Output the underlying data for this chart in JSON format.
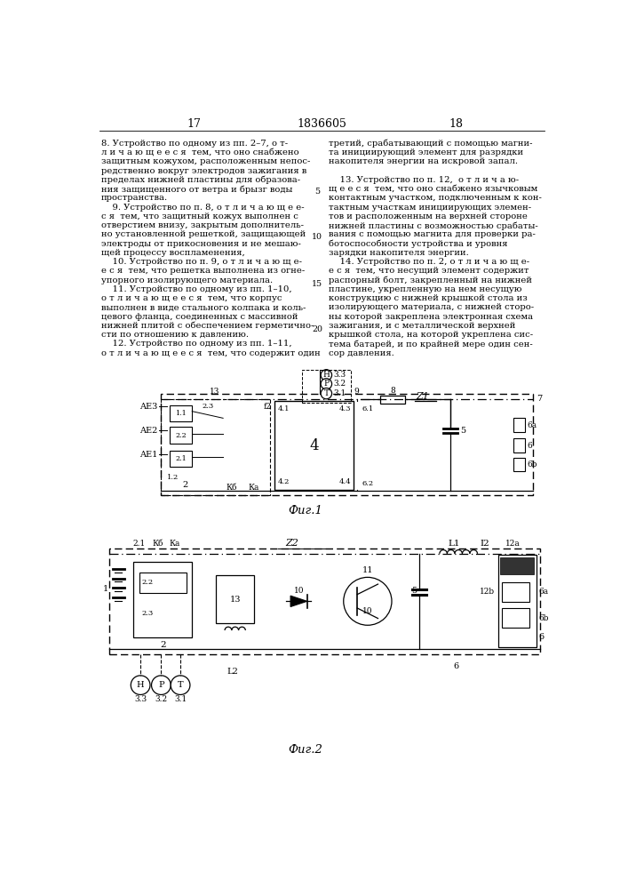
{
  "background_color": "#ffffff",
  "text_color": "#000000",
  "page_num_left": "17",
  "page_num_center": "1836605",
  "page_num_right": "18",
  "fig1_caption": "Фиг.1",
  "fig2_caption": "Фиг.2",
  "left_col_lines": [
    "8. Устройство по одному из пп. 2–7, о т-",
    "л и ч а ю щ е е с я  тем, что оно снабжено",
    "защитным кожухом, расположенным непос-",
    "редственно вокруг электродов зажигания в",
    "пределах нижней пластины для образова-",
    "ния защищенного от ветра и брызг воды",
    "пространства.",
    "    9. Устройство по п. 8, о т л и ч а ю щ е е-",
    "с я  тем, что защитный кожух выполнен с",
    "отверстием внизу, закрытым дополнитель-",
    "но установленной решеткой, защищающей",
    "электроды от прикосновения и не мешаю-",
    "щей процессу воспламенения,",
    "    10. Устройство по п. 9, о т л и ч а ю щ е-",
    "е с я  тем, что решетка выполнена из огне-",
    "упорного изолирующего материала.",
    "    11. Устройство по одному из пп. 1–10,",
    "о т л и ч а ю щ е е с я  тем, что корпус",
    "выполнен в виде стального колпака и коль-",
    "цевого фланца, соединенных с массивной",
    "нижней плитой с обеспечением герметично-",
    "сти по отношению к давлению.",
    "    12. Устройство по одному из пп. 1–11,",
    "о т л и ч а ю щ е е с я  тем, что содержит один"
  ],
  "right_col_lines": [
    "третий, срабатывающий с помощью магни-",
    "та инициирующий элемент для разрядки",
    "накопителя энергии на искровой запал.",
    "",
    "    13. Устройство по п. 12,  о т л и ч а ю-",
    "щ е е с я  тем, что оно снабжено язычковым",
    "контактным участком, подключенным к кон-",
    "тактным участкам инициирующих элемен-",
    "тов и расположенным на верхней стороне",
    "нижней пластины с возможностью срабаты-",
    "вания с помощью магнита для проверки ра-",
    "ботоспособности устройства и уровня",
    "зарядки накопителя энергии.",
    "    14. Устройство по п. 2, о т л и ч а ю щ е-",
    "е с я  тем, что несущий элемент содержит",
    "распорный болт, закрепленный на нижней",
    "пластине, укрепленную на нем несущую",
    "конструкцию с нижней крышкой стола из",
    "изолирующего материала, с нижней сторо-",
    "ны которой закреплена электронная схема",
    "зажигания, и с металлической верхней",
    "крышкой стола, на которой укреплена сис-",
    "тема батарей, и по крайней мере один сен-",
    "сор давления."
  ],
  "line_numbers": [
    [
      5,
      118
    ],
    [
      10,
      185
    ],
    [
      15,
      253
    ],
    [
      20,
      320
    ]
  ]
}
